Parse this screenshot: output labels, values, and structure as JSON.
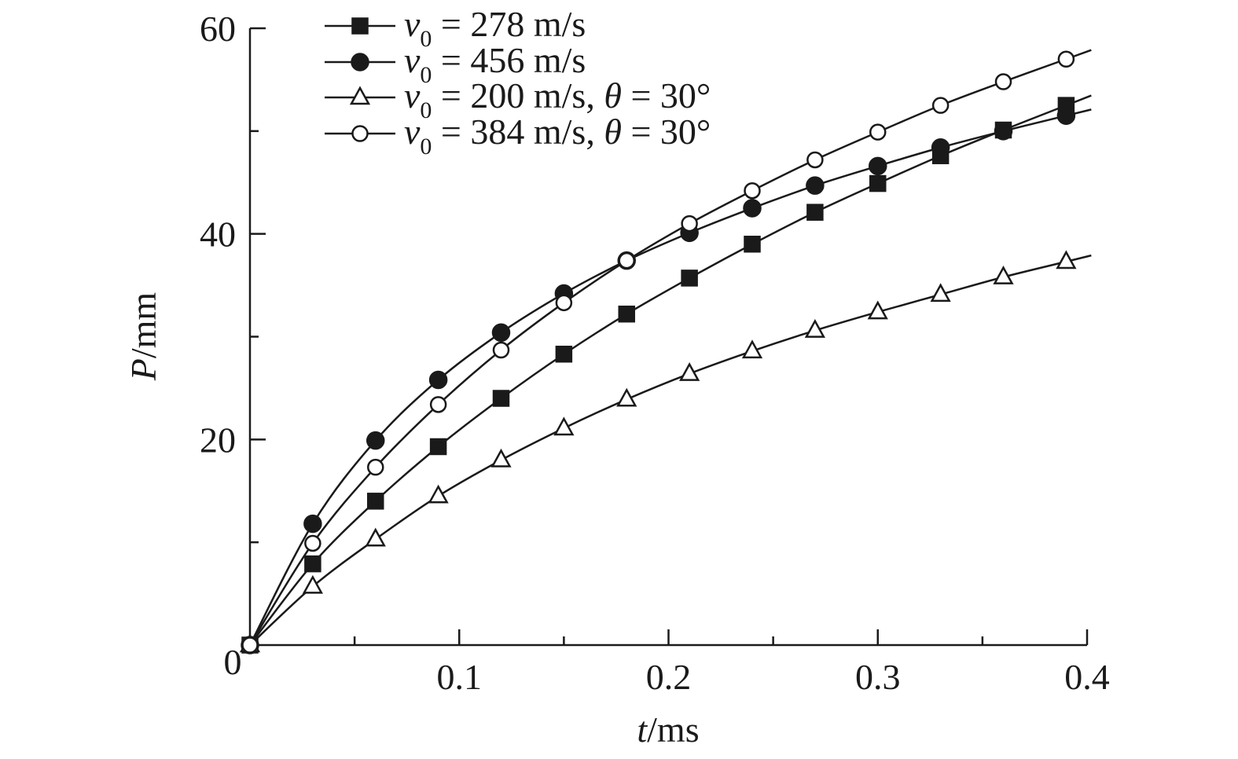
{
  "chart_data": {
    "type": "line",
    "title": "",
    "xlabel": {
      "var": "t",
      "unit": "/ms"
    },
    "ylabel": {
      "var": "P",
      "unit": "/mm"
    },
    "xlim": [
      0,
      0.4
    ],
    "ylim": [
      0,
      60
    ],
    "x_major_ticks": [
      0.1,
      0.2,
      0.3,
      0.4
    ],
    "x_minor_ticks": [
      0.05,
      0.15,
      0.25,
      0.35
    ],
    "x_tick_labels": [
      "0.1",
      "0.2",
      "0.3",
      "0.4"
    ],
    "y_major_ticks": [
      20,
      40,
      60
    ],
    "y_minor_ticks": [
      10,
      30,
      50
    ],
    "y_tick_labels": [
      "20",
      "40",
      "60"
    ],
    "origin_label": "0",
    "grid": false,
    "legend_position": "top-left",
    "x": [
      0,
      0.03,
      0.06,
      0.09,
      0.12,
      0.15,
      0.18,
      0.21,
      0.24,
      0.27,
      0.3,
      0.33,
      0.36,
      0.39
    ],
    "series": [
      {
        "name": "v0 = 278 m/s",
        "legend": {
          "var": "v",
          "sub": "0",
          "text": " = 278 m/s",
          "angle": "",
          "angle_text": ""
        },
        "marker": "filled-square",
        "values": [
          0,
          7.9,
          14.0,
          19.3,
          24.0,
          28.3,
          32.2,
          35.7,
          39.0,
          42.1,
          44.9,
          47.6,
          50.1,
          52.5
        ]
      },
      {
        "name": "v0 = 456 m/s",
        "legend": {
          "var": "v",
          "sub": "0",
          "text": " = 456 m/s",
          "angle": "",
          "angle_text": ""
        },
        "marker": "filled-circle",
        "values": [
          0,
          11.8,
          19.9,
          25.8,
          30.4,
          34.2,
          37.4,
          40.1,
          42.5,
          44.7,
          46.6,
          48.4,
          50.0,
          51.5
        ]
      },
      {
        "name": "v0 = 200 m/s, θ = 30°",
        "legend": {
          "var": "v",
          "sub": "0",
          "text": " = 200 m/s, ",
          "angle": "θ",
          "angle_text": " = 30°"
        },
        "marker": "open-triangle",
        "values": [
          0,
          5.7,
          10.3,
          14.5,
          18.0,
          21.1,
          23.9,
          26.4,
          28.6,
          30.6,
          32.4,
          34.1,
          35.8,
          37.3
        ]
      },
      {
        "name": "v0 = 384 m/s, θ = 30°",
        "legend": {
          "var": "v",
          "sub": "0",
          "text": " = 384 m/s, ",
          "angle": "θ",
          "angle_text": " = 30°"
        },
        "marker": "open-circle",
        "values": [
          0,
          9.9,
          17.3,
          23.4,
          28.7,
          33.3,
          37.4,
          41.0,
          44.2,
          47.2,
          49.9,
          52.5,
          54.8,
          57.0
        ]
      }
    ]
  }
}
